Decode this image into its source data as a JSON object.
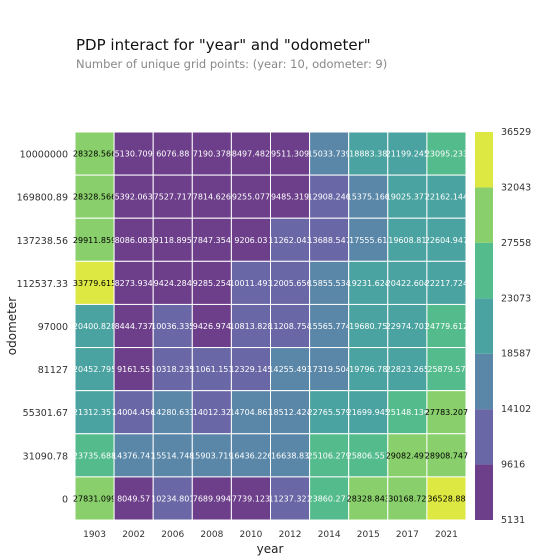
{
  "chart": {
    "title": "PDP interact for \"year\" and \"odometer\"",
    "subtitle": "Number of unique grid points: (year: 10, odometer: 9)"
  },
  "colors": {
    "scale": [
      "#6d3f8a",
      "#6a67a6",
      "#5a87a8",
      "#4aa3a0",
      "#54bb8c",
      "#89cf6b",
      "#dde843"
    ]
  },
  "chart_data": {
    "type": "heatmap",
    "title": "PDP interact for \"year\" and \"odometer\"",
    "xlabel": "year",
    "ylabel": "odometer",
    "x": [
      "1903",
      "2002",
      "2006",
      "2008",
      "2010",
      "2012",
      "2014",
      "2015",
      "2017",
      "2021"
    ],
    "y": [
      "10000000",
      "169800.89",
      "137238.56",
      "112537.33",
      "97000",
      "81127",
      "55301.67",
      "31090.78",
      "0"
    ],
    "values": [
      [
        "28328.566",
        "5130.709",
        "6076.88",
        "7190.378",
        "8497.482",
        "9511.309",
        "15033.739",
        "18883.38",
        "21199.245",
        "23095.233"
      ],
      [
        "28328.566",
        "5392.063",
        "7527.717",
        "7814.626",
        "9255.077",
        "9485.319",
        "12908.246",
        "15375.166",
        "19025.377",
        "22162.144"
      ],
      [
        "29911.859",
        "8086.083",
        "9118.895",
        "7847.354",
        "9206.03",
        "11262.043",
        "13688.547",
        "17555.61",
        "19608.81",
        "22604.947"
      ],
      [
        "33779.615",
        "8273.934",
        "9424.284",
        "9285.254",
        "10011.493",
        "12005.656",
        "15855.534",
        "19231.624",
        "20422.604",
        "22217.724"
      ],
      [
        "20400.828",
        "8444.737",
        "10036.335",
        "9426.974",
        "10813.828",
        "11208.754",
        "15565.774",
        "19680.75",
        "22974.701",
        "24779.612"
      ],
      [
        "20452.795",
        "9161.55",
        "10318.235",
        "11061.151",
        "12329.145",
        "14255.493",
        "17319.504",
        "19796.78",
        "22823.265",
        "25879.57"
      ],
      [
        "21312.357",
        "14004.456",
        "14280.633",
        "14012.32",
        "14704.861",
        "18512.424",
        "22765.579",
        "21699.945",
        "25148.136",
        "27783.207"
      ],
      [
        "23735.688",
        "14376.741",
        "15514.748",
        "15903.719",
        "16436.226",
        "16638.83",
        "25106.279",
        "25806.557",
        "29082.497",
        "28908.747"
      ],
      [
        "27831.099",
        "8049.57",
        "10234.801",
        "7689.994",
        "7739.123",
        "11237.321",
        "23860.271",
        "28328.843",
        "30168.72",
        "36528.88"
      ]
    ],
    "colorbar_ticks": [
      "5131",
      "9616",
      "14102",
      "18587",
      "23073",
      "27558",
      "32043",
      "36529"
    ],
    "vmin": 5131,
    "vmax": 36529,
    "grid": false,
    "legend": "colorbar right"
  }
}
